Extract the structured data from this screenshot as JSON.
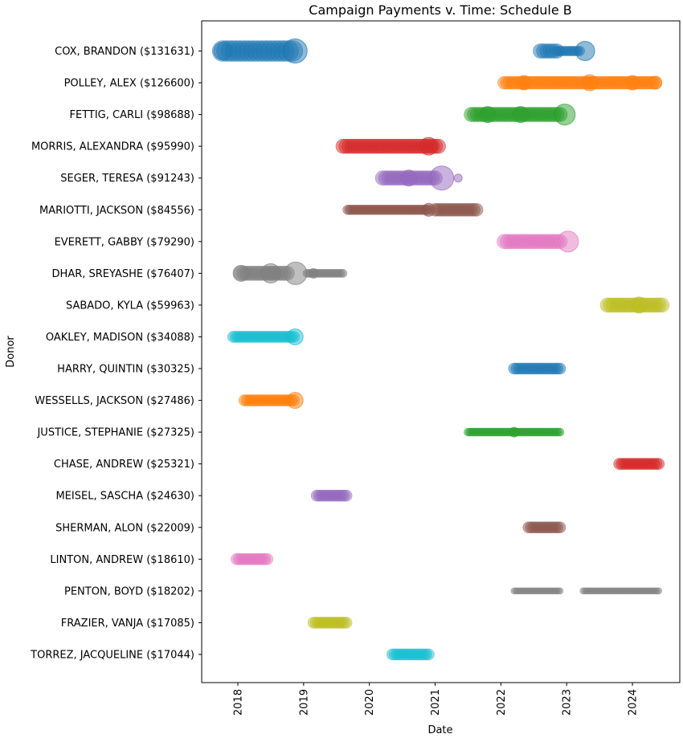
{
  "chart_data": {
    "type": "scatter",
    "title": "Campaign Payments v. Time: Schedule B",
    "xlabel": "Date",
    "ylabel": "Donor",
    "x_ticks": [
      "2018",
      "2019",
      "2020",
      "2021",
      "2022",
      "2023",
      "2024"
    ],
    "xlim": [
      2017.45,
      2024.72
    ],
    "grid": false,
    "legend": "none",
    "donors": [
      {
        "label": "COX, BRANDON ($131631)",
        "color": "#1f77b4",
        "segments": [
          [
            2017.77,
            2018.83,
            13
          ],
          [
            2022.6,
            2022.85,
            9
          ],
          [
            2022.85,
            2023.2,
            6
          ]
        ],
        "big": [
          [
            2017.77,
            11
          ],
          [
            2018.87,
            15
          ],
          [
            2023.28,
            12
          ]
        ]
      },
      {
        "label": "POLLEY, ALEX ($126600)",
        "color": "#ff7f0e",
        "segments": [
          [
            2022.05,
            2024.35,
            8
          ]
        ],
        "big": [
          [
            2022.35,
            9
          ],
          [
            2023.35,
            10
          ],
          [
            2024.0,
            9
          ],
          [
            2024.35,
            8
          ]
        ]
      },
      {
        "label": "FETTIG, CARLI ($98688)",
        "color": "#2ca02c",
        "segments": [
          [
            2021.55,
            2022.9,
            9
          ]
        ],
        "big": [
          [
            2021.8,
            10
          ],
          [
            2022.3,
            10
          ],
          [
            2022.97,
            13
          ]
        ]
      },
      {
        "label": "MORRIS, ALEXANDRA ($95990)",
        "color": "#d62728",
        "segments": [
          [
            2019.6,
            2021.05,
            9
          ]
        ],
        "big": [
          [
            2020.9,
            11
          ]
        ]
      },
      {
        "label": "SEGER, TERESA ($91243)",
        "color": "#9467bd",
        "segments": [
          [
            2020.2,
            2021.0,
            9
          ]
        ],
        "big": [
          [
            2020.6,
            10
          ],
          [
            2021.1,
            15
          ],
          [
            2021.35,
            5
          ]
        ]
      },
      {
        "label": "MARIOTTI, JACKSON ($84556)",
        "color": "#8c564b",
        "segments": [
          [
            2019.67,
            2020.9,
            6
          ],
          [
            2021.0,
            2021.63,
            8
          ]
        ],
        "big": [
          [
            2020.9,
            8
          ]
        ]
      },
      {
        "label": "EVERETT, GABBY ($79290)",
        "color": "#e377c2",
        "segments": [
          [
            2022.05,
            2022.9,
            9
          ]
        ],
        "big": [
          [
            2023.02,
            13
          ]
        ]
      },
      {
        "label": "DHAR, SREYASHE ($76407)",
        "color": "#7f7f7f",
        "segments": [
          [
            2018.05,
            2018.75,
            9
          ],
          [
            2019.05,
            2019.6,
            5
          ]
        ],
        "big": [
          [
            2018.05,
            10
          ],
          [
            2018.5,
            12
          ],
          [
            2018.88,
            14
          ],
          [
            2019.15,
            6
          ]
        ]
      },
      {
        "label": "SABADO, KYLA ($59963)",
        "color": "#bcbd22",
        "segments": [
          [
            2023.62,
            2024.45,
            9
          ]
        ],
        "big": [
          [
            2024.1,
            10
          ]
        ]
      },
      {
        "label": "OAKLEY, MADISON ($34088)",
        "color": "#17becf",
        "segments": [
          [
            2017.93,
            2018.85,
            7
          ]
        ],
        "big": [
          [
            2018.87,
            10
          ]
        ]
      },
      {
        "label": "HARRY, QUINTIN ($30325)",
        "color": "#1f77b4",
        "segments": [
          [
            2022.2,
            2022.9,
            7
          ]
        ],
        "big": []
      },
      {
        "label": "WESSELLS, JACKSON ($27486)",
        "color": "#ff7f0e",
        "segments": [
          [
            2018.1,
            2018.85,
            7
          ]
        ],
        "big": [
          [
            2018.87,
            10
          ]
        ]
      },
      {
        "label": "JUSTICE, STEPHANIE ($27325)",
        "color": "#2ca02c",
        "segments": [
          [
            2021.5,
            2022.9,
            5
          ]
        ],
        "big": [
          [
            2022.2,
            6
          ]
        ]
      },
      {
        "label": "CHASE, ANDREW ($25321)",
        "color": "#d62728",
        "segments": [
          [
            2023.8,
            2024.4,
            7
          ]
        ],
        "big": []
      },
      {
        "label": "MEISEL, SASCHA ($24630)",
        "color": "#9467bd",
        "segments": [
          [
            2019.2,
            2019.65,
            7
          ]
        ],
        "big": []
      },
      {
        "label": "SHERMAN, ALON ($22009)",
        "color": "#8c564b",
        "segments": [
          [
            2022.42,
            2022.9,
            7
          ]
        ],
        "big": []
      },
      {
        "label": "LINTON, ANDREW ($18610)",
        "color": "#e377c2",
        "segments": [
          [
            2017.98,
            2018.45,
            7
          ]
        ],
        "big": []
      },
      {
        "label": "PENTON, BOYD ($18202)",
        "color": "#7f7f7f",
        "segments": [
          [
            2022.2,
            2022.9,
            4
          ],
          [
            2023.25,
            2024.4,
            4
          ]
        ],
        "big": []
      },
      {
        "label": "FRAZIER, VANJA ($17085)",
        "color": "#bcbd22",
        "segments": [
          [
            2019.15,
            2019.65,
            7
          ]
        ],
        "big": []
      },
      {
        "label": "TORREZ, JACQUELINE ($17044)",
        "color": "#17becf",
        "segments": [
          [
            2020.35,
            2020.9,
            7
          ]
        ],
        "big": []
      }
    ]
  }
}
